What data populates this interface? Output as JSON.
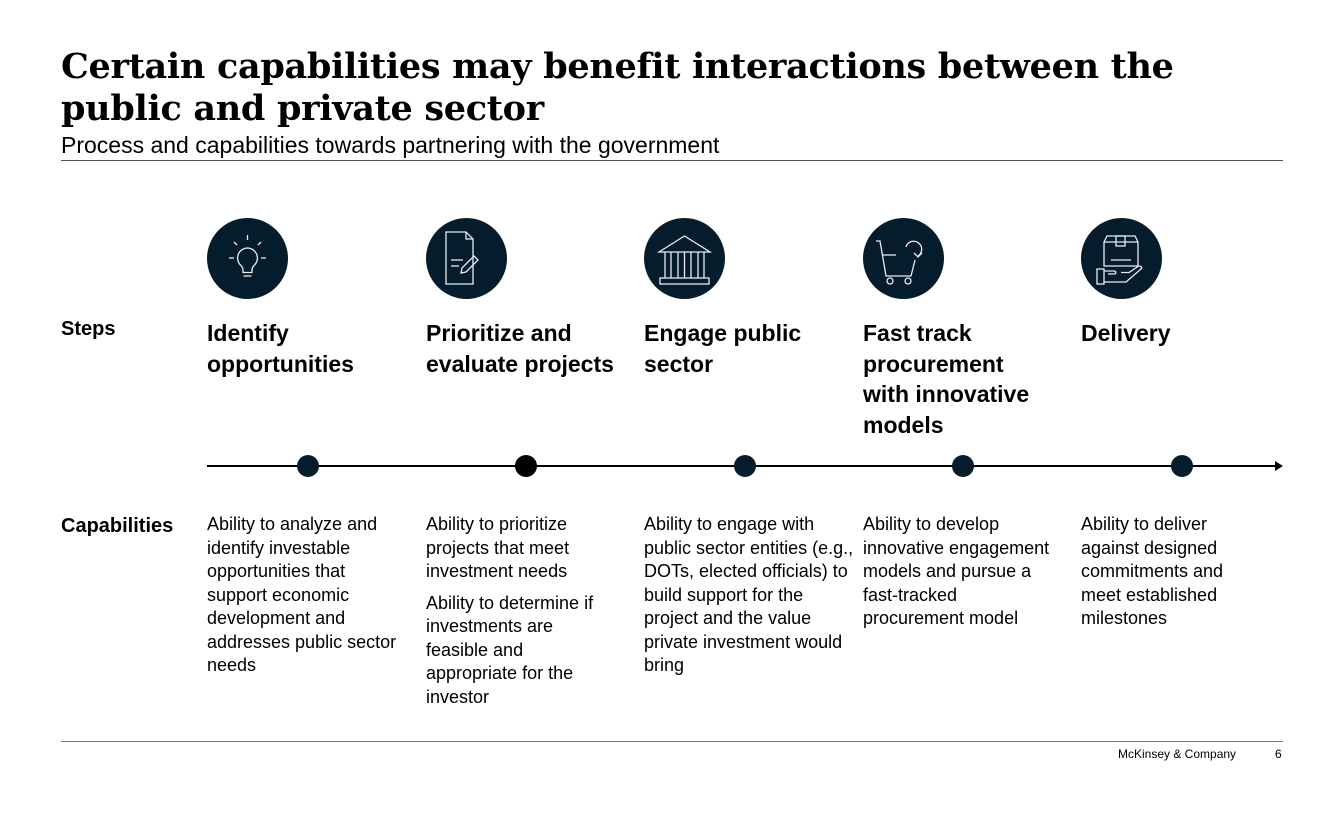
{
  "header": {
    "title": "Certain capabilities may benefit interactions between the public and private sector",
    "subtitle": "Process and capabilities towards partnering with the government"
  },
  "row_labels": {
    "steps": "Steps",
    "capabilities": "Capabilities"
  },
  "colors": {
    "icon_fill": "#051c2c",
    "icon_stroke": "#e8ecef",
    "timeline": "#000000"
  },
  "steps": [
    {
      "icon": "lightbulb-icon",
      "title": "Identify opportunities",
      "capabilities": [
        "Ability to analyze and identify investable opportunities that support economic development and addresses public sector needs"
      ]
    },
    {
      "icon": "document-pencil-icon",
      "title": "Prioritize and evaluate projects",
      "capabilities": [
        "Ability to prioritize projects that meet investment needs",
        "Ability to determine if investments are feasible and appropriate for the investor"
      ]
    },
    {
      "icon": "government-building-icon",
      "title": "Engage public sector",
      "capabilities": [
        "Ability to engage with public sector entities (e.g., DOTs, elected officials) to build support for the project and the value private investment would bring"
      ]
    },
    {
      "icon": "cart-refresh-icon",
      "title": "Fast track procurement with innovative models",
      "capabilities": [
        "Ability to develop innovative engagement models and pursue a fast-tracked procurement model"
      ]
    },
    {
      "icon": "package-hand-icon",
      "title": "Delivery",
      "capabilities": [
        "Ability to deliver against designed commitments and meet established milestones"
      ]
    }
  ],
  "footer": {
    "company": "McKinsey & Company",
    "page_number": "6"
  }
}
